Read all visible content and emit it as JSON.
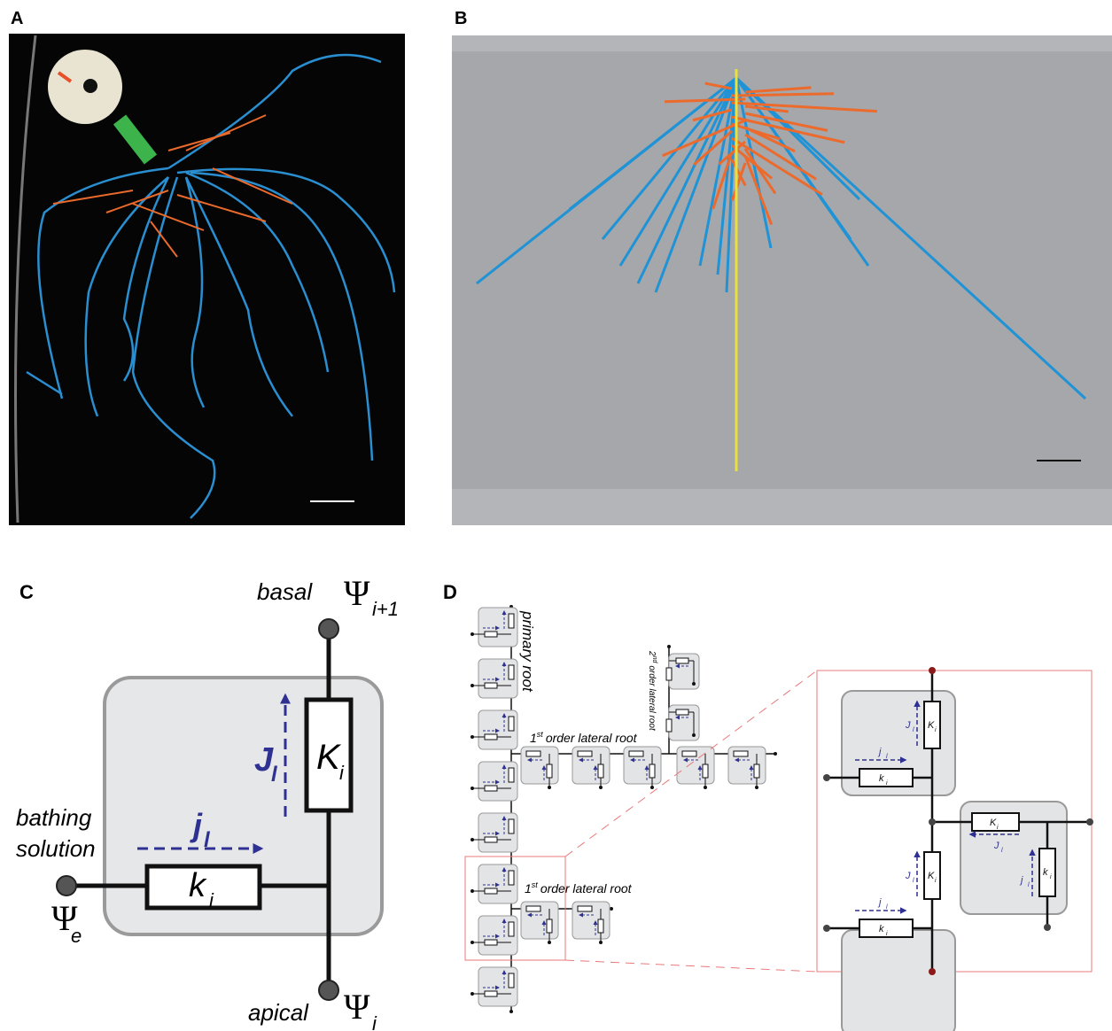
{
  "panels": {
    "a": {
      "label": "A"
    },
    "b": {
      "label": "B"
    },
    "c": {
      "label": "C",
      "basal": "basal",
      "apical": "apical",
      "bathing": "bathing",
      "solution": "solution",
      "psi": "Ψ",
      "psi_top_sub": "i+1",
      "psi_bottom_sub": "i",
      "psi_e_sub": "e",
      "axial_flux": "J",
      "radial_flux": "j",
      "flux_sub": "l",
      "axial_conductance": "K",
      "radial_conductance": "k",
      "cond_sub": "i"
    },
    "d": {
      "label": "D",
      "primary": "primary root",
      "second_num": "2",
      "second_sup": "nd",
      "second_rest": "order lateral root",
      "first_num": "1",
      "first_sup": "st",
      "first_rest": "order lateral root"
    }
  }
}
